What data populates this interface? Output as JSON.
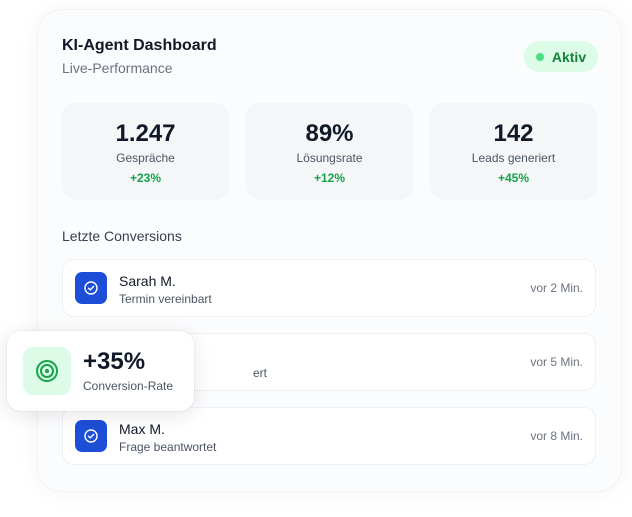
{
  "header": {
    "title": "KI-Agent Dashboard",
    "subtitle": "Live-Performance",
    "status": "Aktiv"
  },
  "stats": [
    {
      "value": "1.247",
      "label": "Gespräche",
      "change": "+23%"
    },
    {
      "value": "89%",
      "label": "Lösungsrate",
      "change": "+12%"
    },
    {
      "value": "142",
      "label": "Leads generiert",
      "change": "+45%"
    }
  ],
  "conversions": {
    "title": "Letzte Conversions",
    "items": [
      {
        "name": "Sarah M.",
        "detail": "Termin vereinbart",
        "time": "vor 2 Min.",
        "icon": "check-circle-icon"
      },
      {
        "name": "",
        "detail": "ert",
        "time": "vor 5 Min.",
        "icon": "check-circle-icon"
      },
      {
        "name": "Max M.",
        "detail": "Frage beantwortet",
        "time": "vor 8 Min.",
        "icon": "check-circle-icon"
      }
    ]
  },
  "floating_badge": {
    "value": "+35%",
    "label": "Conversion-Rate",
    "icon": "target-icon"
  },
  "colors": {
    "accent_blue": "#1d4ed8",
    "success_green": "#16a34a",
    "status_bg": "#dcfce7"
  }
}
